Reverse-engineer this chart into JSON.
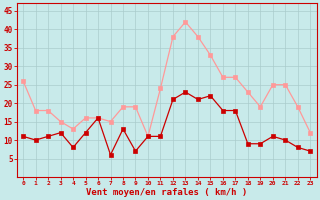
{
  "hours": [
    0,
    1,
    2,
    3,
    4,
    5,
    6,
    7,
    8,
    9,
    10,
    11,
    12,
    13,
    14,
    15,
    16,
    17,
    18,
    19,
    20,
    21,
    22,
    23
  ],
  "wind_avg": [
    11,
    10,
    11,
    12,
    8,
    12,
    16,
    6,
    13,
    7,
    11,
    11,
    21,
    23,
    21,
    22,
    18,
    18,
    9,
    9,
    11,
    10,
    8,
    7
  ],
  "wind_gust": [
    26,
    18,
    18,
    15,
    13,
    16,
    16,
    15,
    19,
    19,
    11,
    24,
    38,
    42,
    38,
    33,
    27,
    27,
    23,
    19,
    25,
    25,
    19,
    12
  ],
  "bg_color": "#c8eaea",
  "grid_color": "#aacccc",
  "avg_color": "#cc0000",
  "gust_color": "#ff9999",
  "axis_color": "#cc0000",
  "xlabel": "Vent moyen/en rafales ( km/h )",
  "ylim": [
    0,
    47
  ],
  "yticks": [
    5,
    10,
    15,
    20,
    25,
    30,
    35,
    40,
    45
  ],
  "markersize": 2.5
}
